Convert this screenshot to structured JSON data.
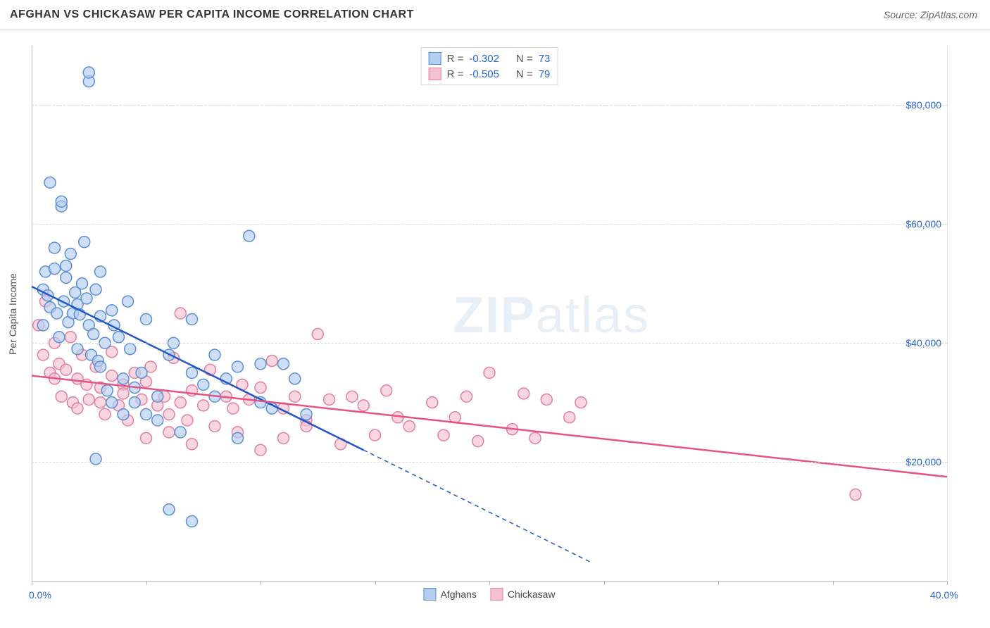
{
  "title": "AFGHAN VS CHICKASAW PER CAPITA INCOME CORRELATION CHART",
  "source": "Source: ZipAtlas.com",
  "watermark": "ZIPatlas",
  "chart": {
    "type": "scatter",
    "xlim": [
      0,
      40
    ],
    "ylim": [
      0,
      90000
    ],
    "x_ticks": [
      0,
      5,
      10,
      15,
      20,
      25,
      30,
      35,
      40
    ],
    "x_tick_labels": {
      "0": "0.0%",
      "40": "40.0%"
    },
    "y_gridlines": [
      20000,
      40000,
      60000,
      80000
    ],
    "y_tick_labels": {
      "20000": "$20,000",
      "40000": "$40,000",
      "60000": "$60,000",
      "80000": "$80,000"
    },
    "y_axis_title": "Per Capita Income",
    "marker_radius": 8,
    "marker_stroke_width": 1.5,
    "line_width": 2.5,
    "background_color": "#ffffff",
    "grid_color": "#d8d8d8",
    "axis_color": "#bbbbbb",
    "label_color": "#2968d8",
    "series": [
      {
        "key": "afghans",
        "label": "Afghans",
        "fill": "#b3ceef",
        "fill_opacity": 0.65,
        "stroke": "#5b8ed6",
        "line_color": "#2457c5",
        "trend": [
          [
            0.0,
            49500
          ],
          [
            14.5,
            22000
          ]
        ],
        "trend_extrapolate": [
          [
            14.5,
            22000
          ],
          [
            24.5,
            3000
          ]
        ],
        "points": [
          [
            0.5,
            49000
          ],
          [
            0.5,
            43000
          ],
          [
            0.6,
            52000
          ],
          [
            0.7,
            48000
          ],
          [
            0.8,
            46000
          ],
          [
            0.8,
            67000
          ],
          [
            1.0,
            52500
          ],
          [
            1.0,
            56000
          ],
          [
            1.1,
            45000
          ],
          [
            1.2,
            41000
          ],
          [
            1.3,
            63000
          ],
          [
            1.3,
            63800
          ],
          [
            1.4,
            47000
          ],
          [
            1.5,
            53000
          ],
          [
            1.5,
            51000
          ],
          [
            1.6,
            43500
          ],
          [
            1.7,
            55000
          ],
          [
            1.8,
            45000
          ],
          [
            1.9,
            48500
          ],
          [
            2.0,
            46500
          ],
          [
            2.0,
            39000
          ],
          [
            2.1,
            44800
          ],
          [
            2.2,
            50000
          ],
          [
            2.3,
            57000
          ],
          [
            2.4,
            47500
          ],
          [
            2.5,
            43000
          ],
          [
            2.5,
            84000
          ],
          [
            2.5,
            85500
          ],
          [
            2.6,
            38000
          ],
          [
            2.7,
            41500
          ],
          [
            2.8,
            49000
          ],
          [
            2.8,
            20500
          ],
          [
            2.9,
            37000
          ],
          [
            3.0,
            44500
          ],
          [
            3.0,
            36000
          ],
          [
            3.2,
            40000
          ],
          [
            3.3,
            32000
          ],
          [
            3.5,
            45500
          ],
          [
            3.5,
            30000
          ],
          [
            3.6,
            43000
          ],
          [
            3.8,
            41000
          ],
          [
            4.0,
            34000
          ],
          [
            4.0,
            28000
          ],
          [
            4.2,
            47000
          ],
          [
            4.3,
            39000
          ],
          [
            4.5,
            32500
          ],
          [
            4.5,
            30000
          ],
          [
            4.8,
            35000
          ],
          [
            5.0,
            28000
          ],
          [
            5.0,
            44000
          ],
          [
            5.5,
            31000
          ],
          [
            5.5,
            27000
          ],
          [
            6.0,
            38000
          ],
          [
            6.0,
            12000
          ],
          [
            6.2,
            40000
          ],
          [
            6.5,
            25000
          ],
          [
            7.0,
            35000
          ],
          [
            7.0,
            10000
          ],
          [
            7.5,
            33000
          ],
          [
            8.0,
            38000
          ],
          [
            8.0,
            31000
          ],
          [
            8.5,
            34000
          ],
          [
            9.0,
            36000
          ],
          [
            9.0,
            24000
          ],
          [
            9.5,
            58000
          ],
          [
            10.0,
            36500
          ],
          [
            10.0,
            30000
          ],
          [
            10.5,
            29000
          ],
          [
            11.0,
            36500
          ],
          [
            11.5,
            34000
          ],
          [
            12.0,
            28000
          ],
          [
            7.0,
            44000
          ],
          [
            3.0,
            52000
          ]
        ]
      },
      {
        "key": "chickasaw",
        "label": "Chickasaw",
        "fill": "#f4c1d0",
        "fill_opacity": 0.65,
        "stroke": "#e37fa3",
        "line_color": "#e55383",
        "trend": [
          [
            0.0,
            34500
          ],
          [
            40.0,
            17500
          ]
        ],
        "points": [
          [
            0.3,
            43000
          ],
          [
            0.5,
            38000
          ],
          [
            0.6,
            47000
          ],
          [
            0.8,
            35000
          ],
          [
            1.0,
            34000
          ],
          [
            1.0,
            40000
          ],
          [
            1.2,
            36500
          ],
          [
            1.3,
            31000
          ],
          [
            1.5,
            35500
          ],
          [
            1.7,
            41000
          ],
          [
            1.8,
            30000
          ],
          [
            2.0,
            34000
          ],
          [
            2.0,
            29000
          ],
          [
            2.2,
            38000
          ],
          [
            2.4,
            33000
          ],
          [
            2.5,
            30500
          ],
          [
            2.8,
            36000
          ],
          [
            3.0,
            30000
          ],
          [
            3.0,
            32500
          ],
          [
            3.2,
            28000
          ],
          [
            3.5,
            34500
          ],
          [
            3.5,
            38500
          ],
          [
            3.8,
            29500
          ],
          [
            4.0,
            33000
          ],
          [
            4.0,
            31500
          ],
          [
            4.2,
            27000
          ],
          [
            4.5,
            35000
          ],
          [
            4.8,
            30500
          ],
          [
            5.0,
            33500
          ],
          [
            5.0,
            24000
          ],
          [
            5.2,
            36000
          ],
          [
            5.5,
            29500
          ],
          [
            5.8,
            31000
          ],
          [
            6.0,
            28000
          ],
          [
            6.0,
            25000
          ],
          [
            6.2,
            37500
          ],
          [
            6.5,
            30000
          ],
          [
            6.5,
            45000
          ],
          [
            6.8,
            27000
          ],
          [
            7.0,
            32000
          ],
          [
            7.0,
            23000
          ],
          [
            7.5,
            29500
          ],
          [
            7.8,
            35500
          ],
          [
            8.0,
            26000
          ],
          [
            8.5,
            31000
          ],
          [
            8.8,
            29000
          ],
          [
            9.0,
            25000
          ],
          [
            9.2,
            33000
          ],
          [
            9.5,
            30500
          ],
          [
            10.0,
            22000
          ],
          [
            10.0,
            32500
          ],
          [
            10.5,
            37000
          ],
          [
            11.0,
            24000
          ],
          [
            11.0,
            29000
          ],
          [
            11.5,
            31000
          ],
          [
            12.0,
            27000
          ],
          [
            12.0,
            26000
          ],
          [
            12.5,
            41500
          ],
          [
            13.0,
            30500
          ],
          [
            13.5,
            23000
          ],
          [
            14.0,
            31000
          ],
          [
            14.5,
            29500
          ],
          [
            15.0,
            24500
          ],
          [
            15.5,
            32000
          ],
          [
            16.0,
            27500
          ],
          [
            16.5,
            26000
          ],
          [
            17.5,
            30000
          ],
          [
            18.0,
            24500
          ],
          [
            18.5,
            27500
          ],
          [
            19.0,
            31000
          ],
          [
            19.5,
            23500
          ],
          [
            20.0,
            35000
          ],
          [
            21.0,
            25500
          ],
          [
            21.5,
            31500
          ],
          [
            22.0,
            24000
          ],
          [
            22.5,
            30500
          ],
          [
            23.5,
            27500
          ],
          [
            24.0,
            30000
          ],
          [
            36.0,
            14500
          ]
        ]
      }
    ],
    "bottom_legend": [
      {
        "label": "Afghans",
        "fill": "#b3ceef",
        "stroke": "#5b8ed6"
      },
      {
        "label": "Chickasaw",
        "fill": "#f4c1d0",
        "stroke": "#e37fa3"
      }
    ],
    "stats": [
      {
        "swatch_fill": "#b3ceef",
        "swatch_stroke": "#5b8ed6",
        "r": "-0.302",
        "n": "73"
      },
      {
        "swatch_fill": "#f4c1d0",
        "swatch_stroke": "#e37fa3",
        "r": "-0.505",
        "n": "79"
      }
    ]
  }
}
